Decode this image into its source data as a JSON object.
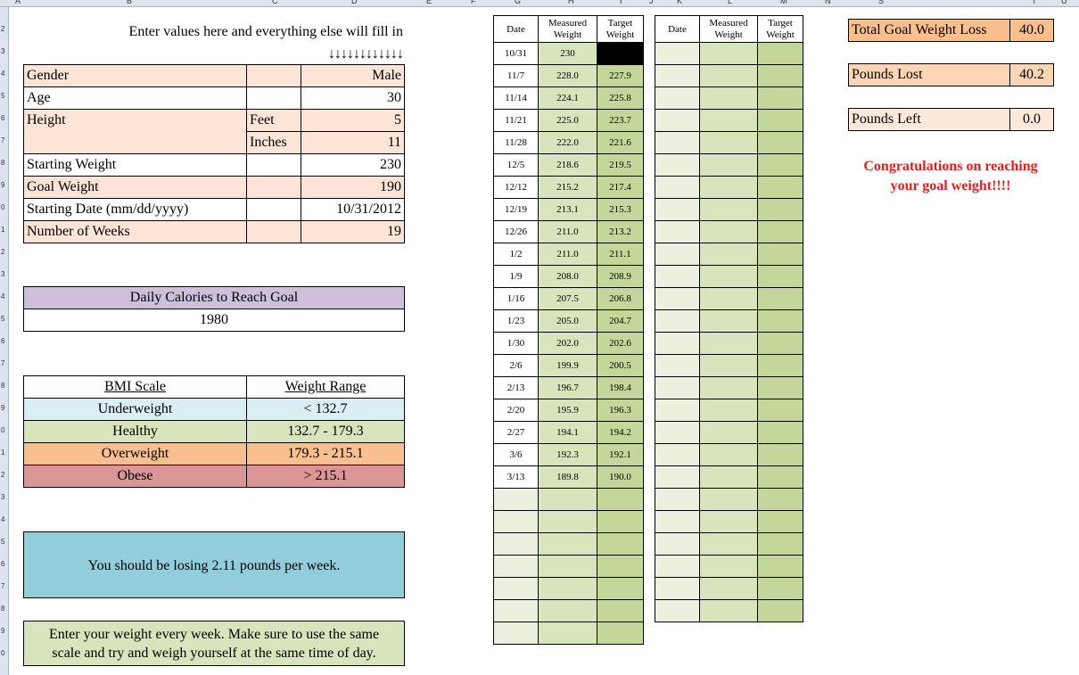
{
  "col_headers": [
    "A",
    "B",
    "C",
    "D",
    "E",
    "F",
    "G",
    "H",
    "I",
    "J",
    "K",
    "L",
    "M",
    "N",
    "S",
    "T",
    "U"
  ],
  "row_headers": [
    "2",
    "3",
    "4",
    "5",
    "6",
    "7",
    "8",
    "9",
    "0",
    "1",
    "2",
    "3",
    "4",
    "5",
    "6",
    "7",
    "8",
    "9",
    "0",
    "1",
    "2",
    "3",
    "4",
    "5",
    "6",
    "7",
    "8",
    "9",
    "0"
  ],
  "instruction": "Enter values here and everything else will fill in",
  "arrows": "↓↓↓↓↓↓↓↓↓↓↓↓",
  "inputs": {
    "gender_label": "Gender",
    "gender": "Male",
    "age_label": "Age",
    "age": "30",
    "height_label": "Height",
    "feet_label": "Feet",
    "feet": "5",
    "inches_label": "Inches",
    "inches": "11",
    "start_weight_label": "Starting Weight",
    "start_weight": "230",
    "goal_weight_label": "Goal Weight",
    "goal_weight": "190",
    "start_date_label": "Starting Date (mm/dd/yyyy)",
    "start_date": "10/31/2012",
    "weeks_label": "Number of Weeks",
    "weeks": "19"
  },
  "calories": {
    "label": "Daily Calories to Reach Goal",
    "value": "1980"
  },
  "bmi": {
    "scale_header": "BMI Scale",
    "range_header": "Weight Range",
    "rows": [
      {
        "name": "Underweight",
        "range": "< 132.7",
        "color": "#daeef3"
      },
      {
        "name": "Healthy",
        "range": "132.7 - 179.3",
        "color": "#d8e4bc"
      },
      {
        "name": "Overweight",
        "range": "179.3 - 215.1",
        "color": "#fabf8f"
      },
      {
        "name": "Obese",
        "range": "> 215.1",
        "color": "#da9694"
      }
    ]
  },
  "rate_message": "You should be losing 2.11 pounds per week.",
  "tip_message_1": "Enter your weight every week. Make sure to use the same",
  "tip_message_2": "scale and try and weigh yourself at the same time of day.",
  "log_headers": {
    "date": "Date",
    "measured": "Measured Weight",
    "target": "Target Weight"
  },
  "log": [
    {
      "date": "10/31",
      "measured": "230",
      "target": ""
    },
    {
      "date": "11/7",
      "measured": "228.0",
      "target": "227.9"
    },
    {
      "date": "11/14",
      "measured": "224.1",
      "target": "225.8"
    },
    {
      "date": "11/21",
      "measured": "225.0",
      "target": "223.7"
    },
    {
      "date": "11/28",
      "measured": "222.0",
      "target": "221.6"
    },
    {
      "date": "12/5",
      "measured": "218.6",
      "target": "219.5"
    },
    {
      "date": "12/12",
      "measured": "215.2",
      "target": "217.4"
    },
    {
      "date": "12/19",
      "measured": "213.1",
      "target": "215.3"
    },
    {
      "date": "12/26",
      "measured": "211.0",
      "target": "213.2"
    },
    {
      "date": "1/2",
      "measured": "211.0",
      "target": "211.1"
    },
    {
      "date": "1/9",
      "measured": "208.0",
      "target": "208.9"
    },
    {
      "date": "1/16",
      "measured": "207.5",
      "target": "206.8"
    },
    {
      "date": "1/23",
      "measured": "205.0",
      "target": "204.7"
    },
    {
      "date": "1/30",
      "measured": "202.0",
      "target": "202.6"
    },
    {
      "date": "2/6",
      "measured": "199.9",
      "target": "200.5"
    },
    {
      "date": "2/13",
      "measured": "196.7",
      "target": "198.4"
    },
    {
      "date": "2/20",
      "measured": "195.9",
      "target": "196.3"
    },
    {
      "date": "2/27",
      "measured": "194.1",
      "target": "194.2"
    },
    {
      "date": "3/6",
      "measured": "192.3",
      "target": "192.1"
    },
    {
      "date": "3/13",
      "measured": "189.8",
      "target": "190.0"
    },
    {
      "date": "",
      "measured": "",
      "target": ""
    },
    {
      "date": "",
      "measured": "",
      "target": ""
    },
    {
      "date": "",
      "measured": "",
      "target": ""
    },
    {
      "date": "",
      "measured": "",
      "target": ""
    },
    {
      "date": "",
      "measured": "",
      "target": ""
    },
    {
      "date": "",
      "measured": "",
      "target": ""
    },
    {
      "date": "",
      "measured": "",
      "target": ""
    }
  ],
  "summary": {
    "total_label": "Total Goal Weight Loss",
    "total": "40.0",
    "lost_label": "Pounds Lost",
    "lost": "40.2",
    "left_label": "Pounds Left",
    "left": "0.0"
  },
  "congrats_1": "Congratulations on reaching",
  "congrats_2": "your goal weight!!!!",
  "colors": {
    "peach": "#fce4d6",
    "lavender": "#ccc0da",
    "blue_box": "#92cddc",
    "green_box": "#d8e4bc",
    "summary_orange": "#fabf8f",
    "congrats_red": "#e61e1e"
  }
}
